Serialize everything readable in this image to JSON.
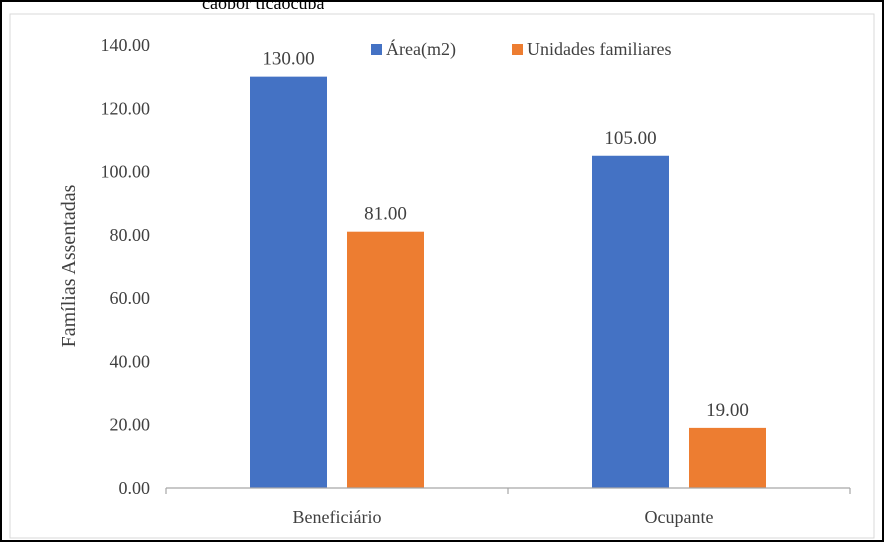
{
  "caption_fragment": "çãopor tiçãocupa",
  "chart_data": {
    "type": "bar",
    "categories": [
      "Beneficiário",
      "Ocupante"
    ],
    "series": [
      {
        "name": "Área(m2)",
        "values": [
          130.0,
          105.0
        ],
        "labels": [
          "130.00",
          "105.00"
        ]
      },
      {
        "name": "Unidades familiares",
        "values": [
          81.0,
          19.0
        ],
        "labels": [
          "81.00",
          "19.00"
        ]
      }
    ],
    "ylabel": "Famílias Assentadas",
    "xlabel": "",
    "ylim": [
      0,
      140
    ],
    "yticks": [
      "0.00",
      "20.00",
      "40.00",
      "60.00",
      "80.00",
      "100.00",
      "120.00",
      "140.00"
    ],
    "legend_position": "top-right",
    "grid": false,
    "colors": {
      "series0": "#4472C4",
      "series1": "#ED7D31",
      "axis": "#a6a6a6"
    }
  }
}
